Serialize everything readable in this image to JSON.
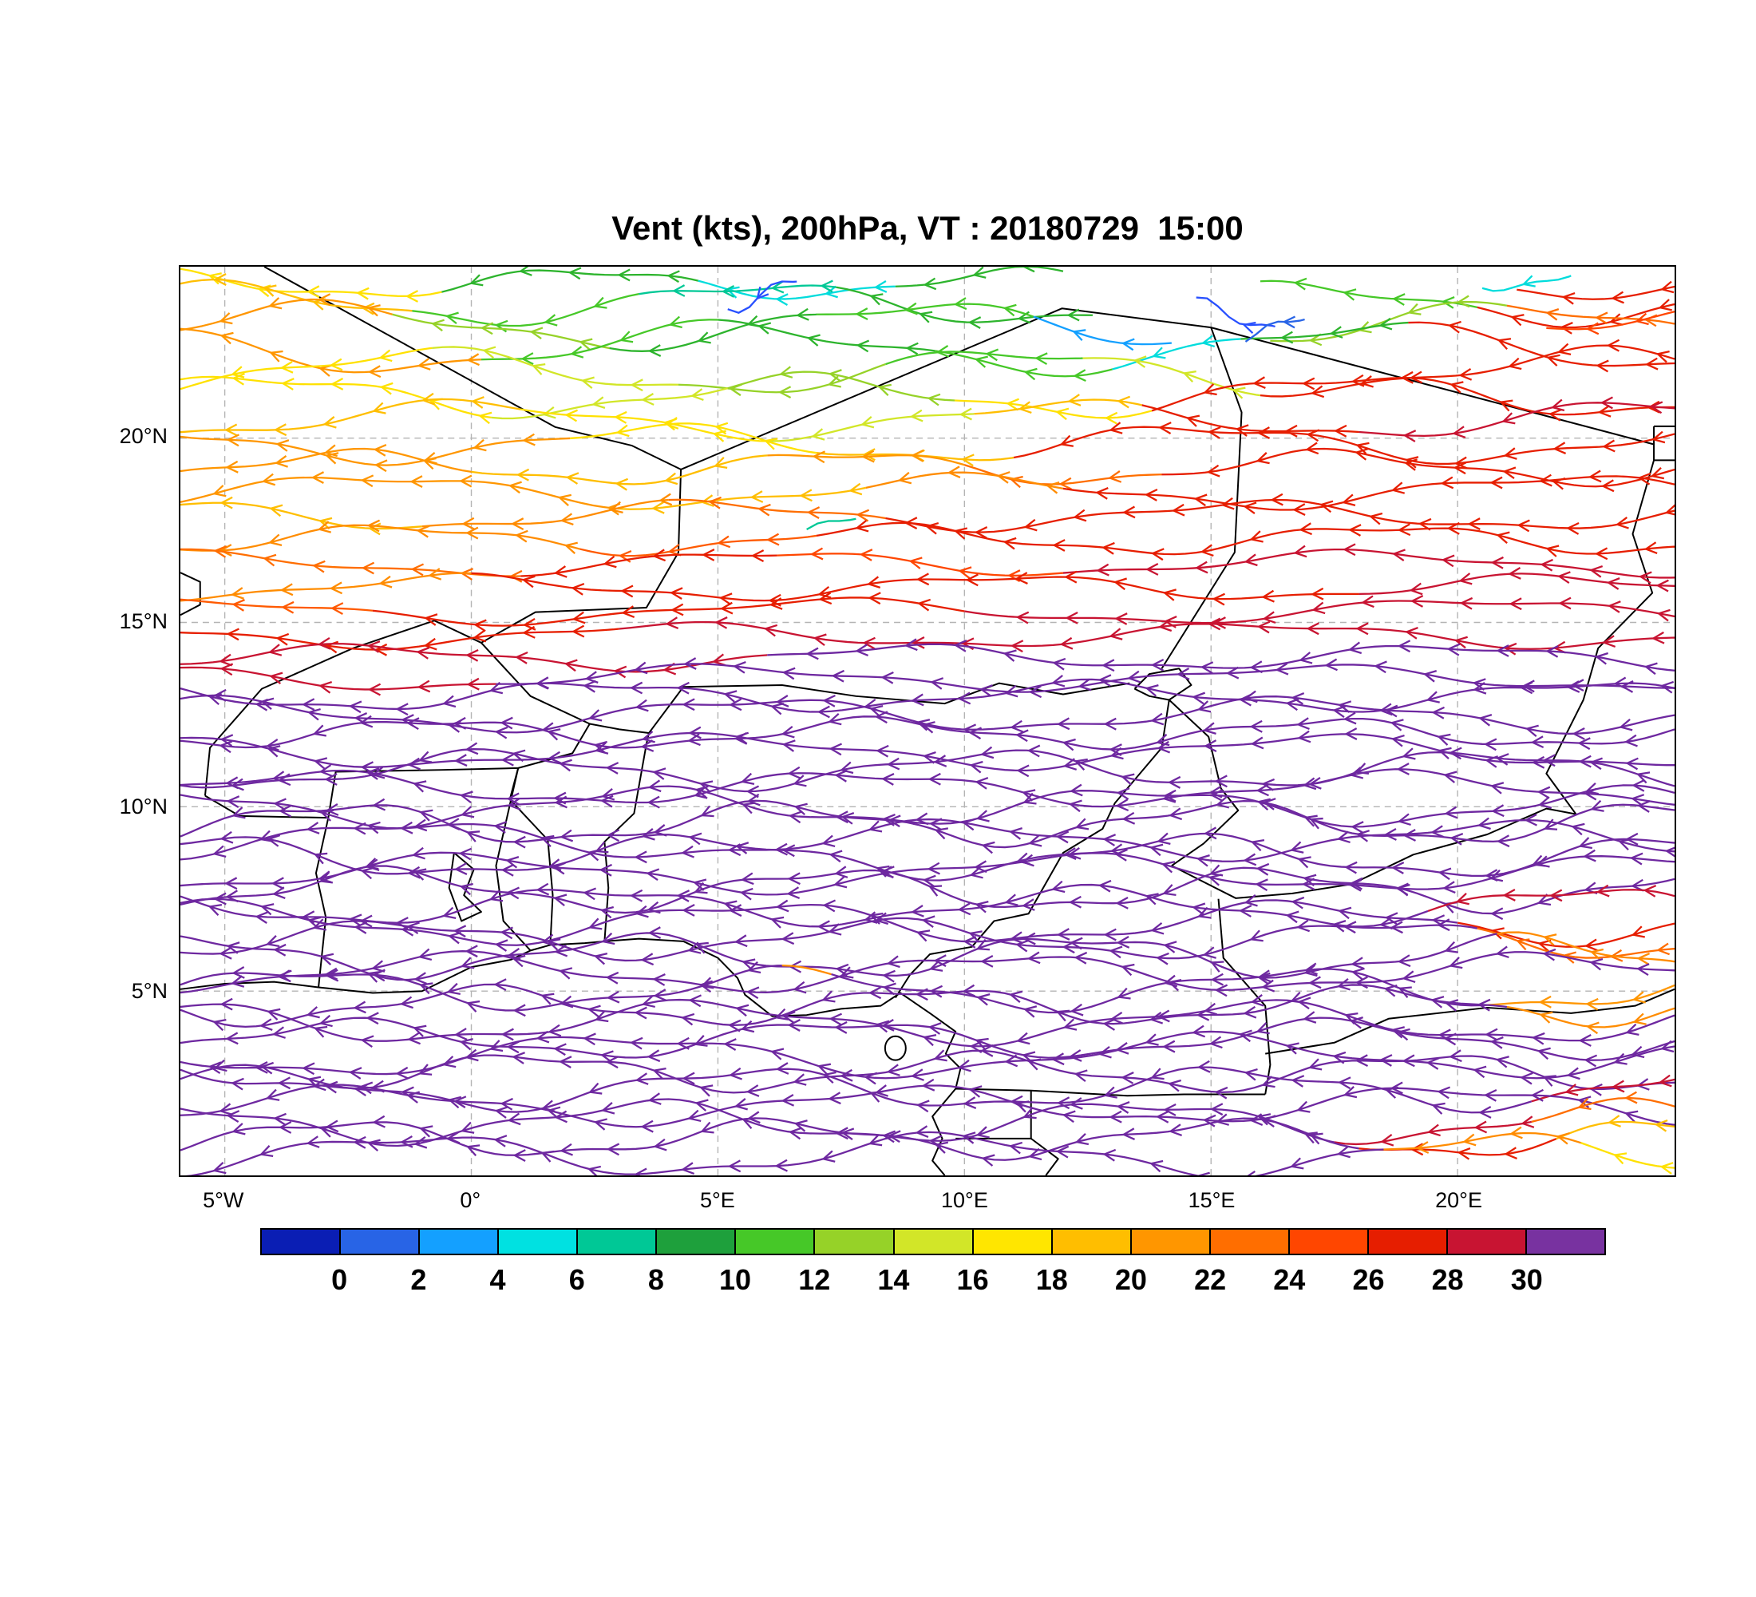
{
  "title": "Vent (kts), 200hPa, VT : 20180729  15:00",
  "chart_data": {
    "type": "line",
    "subtype": "wind-streamline-map",
    "title": "Vent (kts), 200hPa, VT : 20180729  15:00",
    "variable": "Vent",
    "units": "kts",
    "level": "200hPa",
    "valid_time": "20180729 15:00",
    "flow_direction": "easterly (arrowheads point west)",
    "x_axis": {
      "labels": [
        "5°W",
        "0°",
        "5°E",
        "10°E",
        "15°E",
        "20°E"
      ],
      "tick_lons": [
        -5,
        0,
        5,
        10,
        15,
        20
      ],
      "range": [
        -5.9,
        24.4
      ]
    },
    "y_axis": {
      "labels": [
        "5°N",
        "10°N",
        "15°N",
        "20°N"
      ],
      "tick_lats": [
        5,
        10,
        15,
        20
      ],
      "range": [
        0,
        24.65
      ]
    },
    "colorbar": {
      "labels": [
        "0",
        "2",
        "4",
        "6",
        "8",
        "10",
        "12",
        "14",
        "16",
        "18",
        "20",
        "22",
        "24",
        "26",
        "28",
        "30"
      ],
      "colors": [
        "#0A1EB4",
        "#2864E6",
        "#14A0FF",
        "#00E1E1",
        "#00C896",
        "#1EA03C",
        "#46C828",
        "#96D228",
        "#D2E628",
        "#FFE600",
        "#FFBE00",
        "#FF9600",
        "#FF6E00",
        "#FF4600",
        "#E61E00",
        "#C81432",
        "#7832A0"
      ]
    },
    "streams": [
      {
        "lat": 24.2,
        "amp": 0.35,
        "wl": 9,
        "ph": 0,
        "segs": [
          [
            -5.9,
            -0.6,
            "#FFE100"
          ],
          [
            -0.6,
            4.6,
            "#2DB42D"
          ],
          [
            4.6,
            8.6,
            "#00DCDC"
          ],
          [
            8.6,
            12,
            "#2DB42D"
          ]
        ]
      },
      {
        "lat": 23.65,
        "amp": 0.5,
        "wl": 11,
        "ph": 3,
        "segs": [
          [
            -5.9,
            -1.2,
            "#FFBE00"
          ],
          [
            -1.2,
            3.4,
            "#46C828"
          ],
          [
            3.4,
            7.4,
            "#00C896"
          ],
          [
            7.4,
            12.6,
            "#2DB42D"
          ],
          [
            16,
            20.4,
            "#46C828"
          ],
          [
            20.4,
            24.4,
            "#E61E00"
          ]
        ]
      },
      {
        "lat": 23.05,
        "amp": 0.55,
        "wl": 12,
        "ph": 6,
        "segs": [
          [
            -5.9,
            -1.6,
            "#FF9600"
          ],
          [
            -1.6,
            2.8,
            "#96D228"
          ],
          [
            2.8,
            7,
            "#2DB42D"
          ],
          [
            7,
            11.4,
            "#46C828"
          ],
          [
            11.4,
            14.2,
            "#14A0FF"
          ],
          [
            16.2,
            21,
            "#96D228"
          ],
          [
            21,
            24.4,
            "#FF6E00"
          ]
        ]
      },
      {
        "lat": 22.45,
        "amp": 0.6,
        "wl": 13,
        "ph": 2,
        "segs": [
          [
            -5.9,
            0.2,
            "#FF9600"
          ],
          [
            0.2,
            5,
            "#46C828"
          ],
          [
            5,
            9.4,
            "#2DB42D"
          ],
          [
            9.4,
            13,
            "#46C828"
          ],
          [
            13,
            15.6,
            "#00DCDC"
          ],
          [
            15.6,
            19,
            "#2DB42D"
          ],
          [
            19,
            24.4,
            "#E61E00"
          ]
        ]
      },
      {
        "lat": 21.8,
        "amp": 0.55,
        "wl": 12,
        "ph": 8,
        "segs": [
          [
            -5.9,
            -0.8,
            "#FFE100"
          ],
          [
            -0.8,
            4.2,
            "#D2E628"
          ],
          [
            4.2,
            8.4,
            "#96D228"
          ],
          [
            8.4,
            12.4,
            "#46C828"
          ],
          [
            12.4,
            16,
            "#D2E628"
          ],
          [
            16,
            24.4,
            "#E61E00"
          ]
        ]
      },
      {
        "lat": 21.15,
        "amp": 0.5,
        "wl": 11,
        "ph": 4,
        "segs": [
          [
            -5.9,
            0.4,
            "#FFE100"
          ],
          [
            0.4,
            5.2,
            "#D2E628"
          ],
          [
            5.2,
            9.8,
            "#96D228"
          ],
          [
            9.8,
            13.8,
            "#FFE100"
          ],
          [
            13.8,
            24.4,
            "#E61E00"
          ]
        ]
      },
      {
        "lat": 20.5,
        "amp": 0.45,
        "wl": 12,
        "ph": 9,
        "segs": [
          [
            -5.9,
            1,
            "#FFBE00"
          ],
          [
            1,
            6,
            "#FFE100"
          ],
          [
            6,
            10.2,
            "#D2E628"
          ],
          [
            10.2,
            13.6,
            "#FFBE00"
          ],
          [
            13.6,
            18,
            "#E61E00"
          ],
          [
            18,
            24.4,
            "#C81432"
          ]
        ]
      },
      {
        "lat": 19.85,
        "amp": 0.45,
        "wl": 11,
        "ph": 1,
        "segs": [
          [
            -5.9,
            2,
            "#FF9600"
          ],
          [
            2,
            7,
            "#FFE100"
          ],
          [
            7,
            11,
            "#FFBE00"
          ],
          [
            11,
            24.4,
            "#E61E00"
          ]
        ]
      },
      {
        "lat": 19.2,
        "amp": 0.4,
        "wl": 10,
        "ph": 5,
        "segs": [
          [
            -5.9,
            0,
            "#FF9600"
          ],
          [
            0,
            6,
            "#FFBE00"
          ],
          [
            6,
            10,
            "#FF9600"
          ],
          [
            10,
            14,
            "#FF6E00"
          ],
          [
            14,
            24.4,
            "#E61E00"
          ]
        ]
      },
      {
        "lat": 18.55,
        "amp": 0.4,
        "wl": 12,
        "ph": 7,
        "segs": [
          [
            -5.9,
            3,
            "#FF9600"
          ],
          [
            3,
            8,
            "#FFBE00"
          ],
          [
            8,
            12,
            "#FF8C00"
          ],
          [
            12,
            24.4,
            "#E61E00"
          ]
        ]
      },
      {
        "lat": 17.9,
        "amp": 0.35,
        "wl": 11,
        "ph": 2,
        "segs": [
          [
            -5.9,
            -1,
            "#FFBE00"
          ],
          [
            -1,
            4,
            "#FF8C00"
          ],
          [
            4,
            8.4,
            "#FF6E00"
          ],
          [
            8.4,
            24.4,
            "#E61E00"
          ]
        ]
      },
      {
        "lat": 17.25,
        "amp": 0.35,
        "wl": 10,
        "ph": 6,
        "segs": [
          [
            -5.9,
            2.2,
            "#FF8C00"
          ],
          [
            2.2,
            7,
            "#FF5A00"
          ],
          [
            7,
            24.4,
            "#E61E00"
          ]
        ]
      },
      {
        "lat": 16.6,
        "amp": 0.3,
        "wl": 12,
        "ph": 3,
        "segs": [
          [
            -5.9,
            1,
            "#FF6E00"
          ],
          [
            1,
            6.2,
            "#E61E00"
          ],
          [
            6.2,
            12,
            "#FF4600"
          ],
          [
            12,
            24.4,
            "#C81432"
          ]
        ]
      },
      {
        "lat": 15.95,
        "amp": 0.3,
        "wl": 11,
        "ph": 8,
        "segs": [
          [
            -5.9,
            0,
            "#FF8C00"
          ],
          [
            0,
            18,
            "#E61E00"
          ],
          [
            18,
            24.4,
            "#C81432"
          ]
        ]
      },
      {
        "lat": 15.3,
        "amp": 0.3,
        "wl": 13,
        "ph": 4,
        "segs": [
          [
            -5.9,
            -2,
            "#FF5A00"
          ],
          [
            -2,
            10,
            "#E61E00"
          ],
          [
            10,
            24.4,
            "#C81432"
          ]
        ]
      },
      {
        "lat": 14.65,
        "amp": 0.3,
        "wl": 12,
        "ph": 1,
        "segs": [
          [
            -5.9,
            3,
            "#E61E00"
          ],
          [
            3,
            24.4,
            "#C81432"
          ]
        ]
      },
      {
        "lat": 14.05,
        "amp": 0.3,
        "wl": 11,
        "ph": 6,
        "segs": [
          [
            -5.9,
            6,
            "#C81432"
          ],
          [
            6,
            24.4,
            "#6E28A0"
          ]
        ]
      },
      {
        "lat": 13.5,
        "amp": 0.3,
        "wl": 12,
        "ph": 2,
        "segs": [
          [
            -5.9,
            0.5,
            "#C81432"
          ],
          [
            0.5,
            24.4,
            "#6E28A0"
          ]
        ]
      },
      {
        "lat": 13.0,
        "amp": 0.35,
        "wl": 10,
        "ph": 0,
        "ae": 0.95,
        "segs": [
          [
            -5.9,
            24.4,
            "#6E28A0"
          ]
        ]
      },
      {
        "lat": 12.5,
        "amp": 0.4,
        "wl": 11,
        "ph": 3,
        "ae": 0.95,
        "segs": [
          [
            -5.9,
            24.4,
            "#6E28A0"
          ]
        ]
      },
      {
        "lat": 12.0,
        "amp": 0.35,
        "wl": 9,
        "ph": 6,
        "ae": 0.95,
        "segs": [
          [
            -5.9,
            24.4,
            "#6E28A0"
          ]
        ]
      },
      {
        "lat": 11.5,
        "amp": 0.4,
        "wl": 12,
        "ph": 2,
        "ae": 0.95,
        "segs": [
          [
            -5.9,
            24.4,
            "#6E28A0"
          ]
        ]
      },
      {
        "lat": 11.0,
        "amp": 0.45,
        "wl": 10,
        "ph": 8,
        "ae": 0.95,
        "segs": [
          [
            -5.9,
            24.4,
            "#6E28A0"
          ]
        ]
      },
      {
        "lat": 10.5,
        "amp": 0.4,
        "wl": 11,
        "ph": 5,
        "ae": 0.95,
        "segs": [
          [
            -5.9,
            24.4,
            "#6E28A0"
          ]
        ]
      },
      {
        "lat": 10.0,
        "amp": 0.45,
        "wl": 10,
        "ph": 1,
        "ae": 0.95,
        "segs": [
          [
            -5.9,
            24.4,
            "#6E28A0"
          ]
        ]
      },
      {
        "lat": 9.55,
        "amp": 0.5,
        "wl": 9,
        "ph": 4,
        "ae": 0.95,
        "segs": [
          [
            -5.9,
            24.4,
            "#6E28A0"
          ]
        ]
      },
      {
        "lat": 9.1,
        "amp": 0.45,
        "wl": 11,
        "ph": 7,
        "ae": 0.95,
        "segs": [
          [
            -5.9,
            24.4,
            "#6E28A0"
          ]
        ]
      },
      {
        "lat": 8.65,
        "amp": 0.5,
        "wl": 10,
        "ph": 2,
        "ae": 0.95,
        "segs": [
          [
            -5.9,
            24.4,
            "#6E28A0"
          ]
        ]
      },
      {
        "lat": 8.2,
        "amp": 0.45,
        "wl": 12,
        "ph": 9,
        "ae": 0.95,
        "segs": [
          [
            -5.9,
            24.4,
            "#6E28A0"
          ]
        ]
      },
      {
        "lat": 7.75,
        "amp": 0.5,
        "wl": 9,
        "ph": 5,
        "ae": 0.95,
        "segs": [
          [
            -5.9,
            24.4,
            "#6E28A0"
          ]
        ]
      },
      {
        "lat": 7.3,
        "amp": 0.45,
        "wl": 10,
        "ph": 0,
        "ae": 0.95,
        "segs": [
          [
            -5.9,
            19.4,
            "#6E28A0"
          ],
          [
            19.4,
            24.4,
            "#C81432"
          ]
        ]
      },
      {
        "lat": 6.85,
        "amp": 0.5,
        "wl": 11,
        "ph": 3,
        "ae": 0.95,
        "segs": [
          [
            -5.9,
            20,
            "#6E28A0"
          ],
          [
            20,
            24.4,
            "#E61E00"
          ]
        ]
      },
      {
        "lat": 6.4,
        "amp": 0.45,
        "wl": 10,
        "ph": 6,
        "ae": 0.95,
        "segs": [
          [
            -5.9,
            20.4,
            "#6E28A0"
          ],
          [
            20.4,
            24.4,
            "#FF6E00"
          ]
        ]
      },
      {
        "lat": 5.95,
        "amp": 0.5,
        "wl": 9,
        "ph": 1,
        "ae": 0.95,
        "segs": [
          [
            -5.9,
            20.8,
            "#6E28A0"
          ],
          [
            20.8,
            24.4,
            "#FF8C00"
          ]
        ]
      },
      {
        "lat": 5.5,
        "amp": 0.45,
        "wl": 11,
        "ph": 8,
        "ae": 0.95,
        "segs": [
          [
            -5.9,
            24.4,
            "#6E28A0"
          ]
        ]
      },
      {
        "lat": 5.05,
        "amp": 0.5,
        "wl": 10,
        "ph": 4,
        "ae": 0.95,
        "segs": [
          [
            -5.9,
            6.3,
            "#6E28A0"
          ],
          [
            6.3,
            7.3,
            "#FF8C00"
          ],
          [
            7.3,
            20.6,
            "#6E28A0"
          ],
          [
            20.6,
            24.4,
            "#FF9600"
          ]
        ]
      },
      {
        "lat": 4.6,
        "amp": 0.45,
        "wl": 9,
        "ph": 7,
        "ae": 0.95,
        "segs": [
          [
            -5.9,
            21,
            "#6E28A0"
          ],
          [
            21,
            24.4,
            "#FF8C00"
          ]
        ]
      },
      {
        "lat": 4.15,
        "amp": 0.5,
        "wl": 11,
        "ph": 2,
        "ae": 0.95,
        "segs": [
          [
            -5.9,
            24.4,
            "#6E28A0"
          ]
        ]
      },
      {
        "lat": 3.7,
        "amp": 0.45,
        "wl": 10,
        "ph": 5,
        "ae": 0.95,
        "segs": [
          [
            -5.9,
            24.4,
            "#6E28A0"
          ]
        ]
      },
      {
        "lat": 3.25,
        "amp": 0.5,
        "wl": 12,
        "ph": 0,
        "ae": 0.95,
        "segs": [
          [
            -5.9,
            24.4,
            "#6E28A0"
          ]
        ]
      },
      {
        "lat": 2.8,
        "amp": 0.45,
        "wl": 9,
        "ph": 8,
        "ae": 0.95,
        "segs": [
          [
            -5.9,
            24.4,
            "#6E28A0"
          ]
        ]
      },
      {
        "lat": 2.35,
        "amp": 0.5,
        "wl": 10,
        "ph": 3,
        "ae": 0.95,
        "segs": [
          [
            -5.9,
            21.5,
            "#6E28A0"
          ],
          [
            21.5,
            24.4,
            "#C81432"
          ]
        ]
      },
      {
        "lat": 1.9,
        "amp": 0.45,
        "wl": 11,
        "ph": 6,
        "ae": 0.95,
        "segs": [
          [
            -5.9,
            24.4,
            "#6E28A0"
          ]
        ]
      },
      {
        "lat": 1.45,
        "amp": 0.5,
        "wl": 10,
        "ph": 1,
        "ae": 0.95,
        "segs": [
          [
            -5.9,
            17.5,
            "#6E28A0"
          ],
          [
            17.5,
            21.5,
            "#C81432"
          ],
          [
            21.5,
            24.4,
            "#FF6E00"
          ]
        ]
      },
      {
        "lat": 1.0,
        "amp": 0.45,
        "wl": 9,
        "ph": 4,
        "ae": 0.95,
        "segs": [
          [
            -5.9,
            18,
            "#6E28A0"
          ],
          [
            18,
            22,
            "#E61E00"
          ],
          [
            22,
            24.4,
            "#FFBE00"
          ]
        ]
      },
      {
        "lat": 0.55,
        "amp": 0.5,
        "wl": 11,
        "ph": 7,
        "ae": 0.95,
        "segs": [
          [
            -5.9,
            18.5,
            "#6E28A0"
          ],
          [
            18.5,
            22.5,
            "#FF8C00"
          ],
          [
            22.5,
            24.4,
            "#FFE100"
          ]
        ]
      },
      {
        "lat": 23.95,
        "amp": 0.45,
        "wl": 3,
        "ph": 0,
        "ae": 0.9,
        "segs": [
          [
            5.2,
            6.6,
            "#2850FF"
          ]
        ]
      },
      {
        "lat": 23.35,
        "amp": 0.4,
        "wl": 3.2,
        "ph": 1,
        "ae": 0.9,
        "segs": [
          [
            14.7,
            16.3,
            "#2850FF"
          ]
        ]
      },
      {
        "lat": 22.95,
        "amp": 0.3,
        "wl": 2.6,
        "ph": 0.5,
        "ae": 0.8,
        "segs": [
          [
            15.7,
            16.9,
            "#2864E6"
          ]
        ]
      },
      {
        "lat": 24.35,
        "amp": 0.3,
        "wl": 4,
        "ph": 2,
        "ae": 1.1,
        "segs": [
          [
            20.5,
            22.3,
            "#00DCDC"
          ]
        ]
      },
      {
        "lat": 17.6,
        "amp": 0.25,
        "wl": 3,
        "ph": 1,
        "ae": 0.9,
        "segs": [
          [
            6.8,
            7.8,
            "#00C896"
          ]
        ]
      },
      {
        "lat": 24.15,
        "amp": 0.3,
        "wl": 10,
        "ph": 5,
        "segs": [
          [
            21.2,
            24.4,
            "#E61E00"
          ]
        ]
      },
      {
        "lat": 23.3,
        "amp": 0.35,
        "wl": 11,
        "ph": 2,
        "segs": [
          [
            21.8,
            24.4,
            "#FF4600"
          ]
        ]
      }
    ]
  },
  "map": {
    "frame_color": "#000000",
    "border_color": "#000000",
    "grid_color": "#b4b4b4"
  }
}
